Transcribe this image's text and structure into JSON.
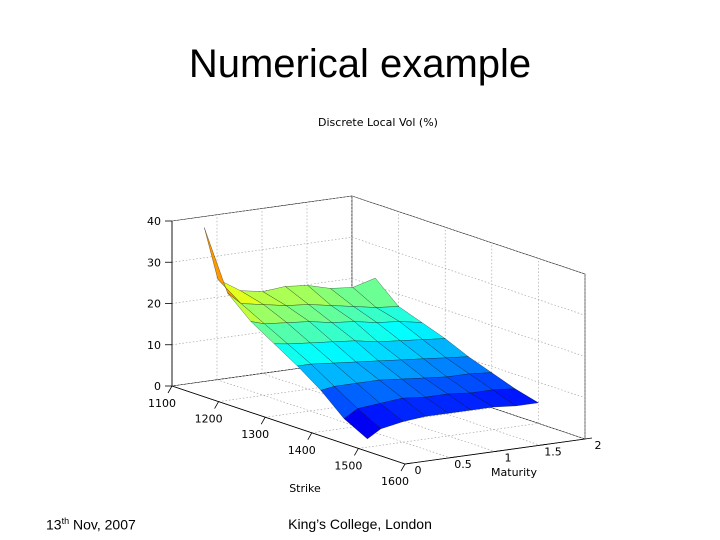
{
  "slide": {
    "title": "Numerical example",
    "footer_day": "13",
    "footer_day_suffix": "th",
    "footer_rest": " Nov, 2007",
    "footer_org": "King’s College, London"
  },
  "chart_data": {
    "type": "surface",
    "title": "Discrete Local Vol (%)",
    "xlabel": "Strike",
    "ylabel": "Maturity",
    "zlabel": "",
    "xlim": [
      1100,
      1600
    ],
    "ylim": [
      0,
      2
    ],
    "zlim": [
      0,
      40
    ],
    "x_ticks": [
      1100,
      1200,
      1300,
      1400,
      1500,
      1600
    ],
    "y_ticks": [
      0,
      0.5,
      1,
      1.5,
      2
    ],
    "z_ticks": [
      0,
      10,
      20,
      30,
      40
    ],
    "grid": true,
    "colormap": "jet",
    "strikes": [
      1150,
      1200,
      1250,
      1300,
      1350,
      1400,
      1450,
      1500
    ],
    "maturities": [
      0.1,
      0.25,
      0.5,
      0.75,
      1.0,
      1.25,
      1.5,
      1.75,
      2.0
    ],
    "values": [
      [
        40,
        27,
        23.5,
        22.5,
        23,
        22.5,
        21,
        20.5,
        22
      ],
      [
        26,
        23,
        22,
        21,
        20.5,
        19.5,
        18.5,
        17.5,
        17
      ],
      [
        21,
        20,
        19.5,
        19,
        18,
        17.5,
        16.5,
        16,
        15
      ],
      [
        17.5,
        17,
        16.5,
        16,
        15.5,
        14.5,
        14,
        13.5,
        13
      ],
      [
        14,
        14,
        13.5,
        13,
        12.5,
        12,
        11.5,
        11,
        10.5
      ],
      [
        10,
        10.5,
        10.5,
        10.5,
        10,
        9.5,
        9,
        9,
        8.5
      ],
      [
        5,
        7,
        7.5,
        8,
        7.5,
        7.5,
        7,
        7,
        6.5
      ],
      [
        2,
        4,
        5,
        5.5,
        5.5,
        5.5,
        5.5,
        5,
        5
      ]
    ]
  }
}
